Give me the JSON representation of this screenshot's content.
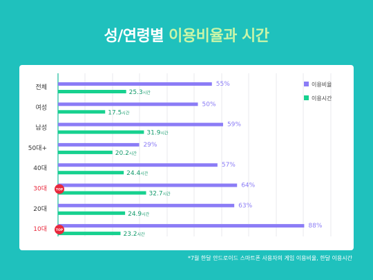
{
  "title": {
    "main": "성/연령별 ",
    "highlight": "이용비율과 시간"
  },
  "footnote": "*7월 한달 안드로이드 스마트폰 사용자의 게임 이용비율, 한달 이용시간",
  "colors": {
    "ratio": "#8b7cf6",
    "time": "#17d18f",
    "highlight_label": "#e8283c",
    "top_badge": "#e8283c"
  },
  "chart_data": {
    "type": "bar",
    "orientation": "horizontal",
    "categories": [
      "전체",
      "여성",
      "남성",
      "50대+",
      "40대",
      "30대",
      "20대",
      "10대"
    ],
    "highlighted_categories": [
      "30대",
      "10대"
    ],
    "series": [
      {
        "name": "이용비율",
        "values": [
          55,
          50,
          59,
          29,
          57,
          64,
          63,
          88
        ],
        "labels": [
          "55%",
          "50%",
          "59%",
          "29%",
          "57%",
          "64%",
          "63%",
          "88%"
        ]
      },
      {
        "name": "이용시간",
        "values": [
          25.3,
          17.5,
          31.9,
          20.2,
          24.4,
          32.7,
          24.9,
          23.2
        ],
        "value_labels": [
          "25.3",
          "17.5",
          "31.9",
          "20.2",
          "24.4",
          "32.7",
          "24.9",
          "23.2"
        ],
        "unit": "시간"
      }
    ],
    "top_badge": {
      "text": "TOP",
      "categories": [
        "30대",
        "10대"
      ]
    },
    "legend": "top-right",
    "grid": true
  }
}
